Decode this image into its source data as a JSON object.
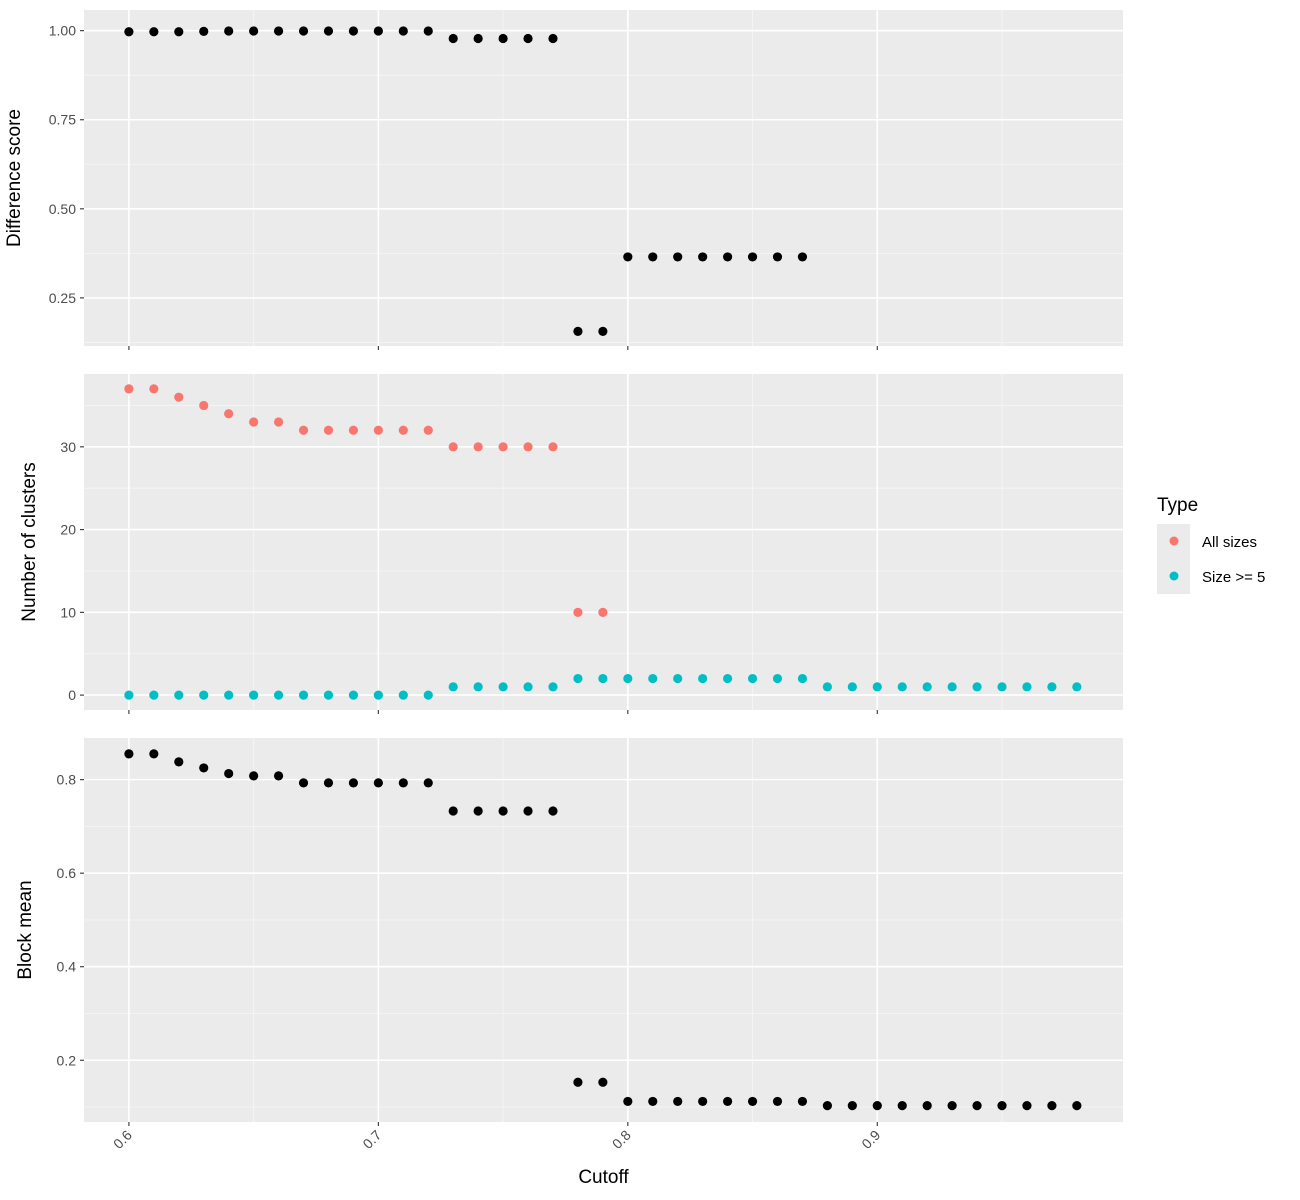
{
  "chart_data": {
    "type": "scatter",
    "xlabel": "Cutoff",
    "xlim": [
      0.582,
      0.9985
    ],
    "x_ticks": [
      0.6,
      0.7,
      0.8,
      0.9
    ],
    "x_tick_labels": [
      "0.6",
      "0.7",
      "0.8",
      "0.9"
    ],
    "panels": [
      {
        "id": "difference",
        "ylabel": "Difference score",
        "ylim": [
          0.115,
          1.058
        ],
        "y_ticks": [
          0.25,
          0.5,
          0.75,
          1.0
        ],
        "y_tick_labels": [
          "0.25",
          "0.50",
          "0.75",
          "1.00"
        ],
        "series": [
          {
            "color": "#000000",
            "x": [
              0.6,
              0.61,
              0.62,
              0.63,
              0.64,
              0.65,
              0.66,
              0.67,
              0.68,
              0.69,
              0.7,
              0.71,
              0.72,
              0.73,
              0.74,
              0.75,
              0.76,
              0.77,
              0.78,
              0.79,
              0.8,
              0.81,
              0.82,
              0.83,
              0.84,
              0.85,
              0.86,
              0.87
            ],
            "y": [
              0.997,
              0.997,
              0.997,
              0.998,
              0.999,
              0.999,
              0.999,
              0.999,
              0.999,
              0.999,
              0.999,
              0.999,
              0.999,
              0.978,
              0.978,
              0.978,
              0.978,
              0.978,
              0.156,
              0.156,
              0.365,
              0.365,
              0.365,
              0.365,
              0.365,
              0.365,
              0.365,
              0.365
            ]
          }
        ]
      },
      {
        "id": "clusters",
        "ylabel": "Number of clusters",
        "ylim": [
          -1.8,
          38.8
        ],
        "y_ticks": [
          0,
          10,
          20,
          30
        ],
        "y_tick_labels": [
          "0",
          "10",
          "20",
          "30"
        ],
        "series": [
          {
            "name": "All sizes",
            "color": "#F8766D",
            "x": [
              0.6,
              0.61,
              0.62,
              0.63,
              0.64,
              0.65,
              0.66,
              0.67,
              0.68,
              0.69,
              0.7,
              0.71,
              0.72,
              0.73,
              0.74,
              0.75,
              0.76,
              0.77,
              0.78,
              0.79
            ],
            "y": [
              37,
              37,
              36,
              35,
              34,
              33,
              33,
              32,
              32,
              32,
              32,
              32,
              32,
              30,
              30,
              30,
              30,
              30,
              10,
              10
            ]
          },
          {
            "name": "Size >= 5",
            "color": "#00BFC4",
            "x": [
              0.6,
              0.61,
              0.62,
              0.63,
              0.64,
              0.65,
              0.66,
              0.67,
              0.68,
              0.69,
              0.7,
              0.71,
              0.72,
              0.73,
              0.74,
              0.75,
              0.76,
              0.77,
              0.78,
              0.79,
              0.8,
              0.81,
              0.82,
              0.83,
              0.84,
              0.85,
              0.86,
              0.87,
              0.88,
              0.89,
              0.9,
              0.91,
              0.92,
              0.93,
              0.94,
              0.95,
              0.96,
              0.97,
              0.98
            ],
            "y": [
              0,
              0,
              0,
              0,
              0,
              0,
              0,
              0,
              0,
              0,
              0,
              0,
              0,
              1,
              1,
              1,
              1,
              1,
              2,
              2,
              2,
              2,
              2,
              2,
              2,
              2,
              2,
              2,
              1,
              1,
              1,
              1,
              1,
              1,
              1,
              1,
              1,
              1,
              1
            ]
          }
        ]
      },
      {
        "id": "blockmean",
        "ylabel": "Block mean",
        "ylim": [
          0.068,
          0.889
        ],
        "y_ticks": [
          0.2,
          0.4,
          0.6,
          0.8
        ],
        "y_tick_labels": [
          "0.2",
          "0.4",
          "0.6",
          "0.8"
        ],
        "series": [
          {
            "color": "#000000",
            "x": [
              0.6,
              0.61,
              0.62,
              0.63,
              0.64,
              0.65,
              0.66,
              0.67,
              0.68,
              0.69,
              0.7,
              0.71,
              0.72,
              0.73,
              0.74,
              0.75,
              0.76,
              0.77,
              0.78,
              0.79,
              0.8,
              0.81,
              0.82,
              0.83,
              0.84,
              0.85,
              0.86,
              0.87,
              0.88,
              0.89,
              0.9,
              0.91,
              0.92,
              0.93,
              0.94,
              0.95,
              0.96,
              0.97,
              0.98
            ],
            "y": [
              0.855,
              0.855,
              0.838,
              0.825,
              0.813,
              0.808,
              0.808,
              0.793,
              0.793,
              0.793,
              0.793,
              0.793,
              0.793,
              0.733,
              0.733,
              0.733,
              0.733,
              0.733,
              0.153,
              0.153,
              0.112,
              0.112,
              0.112,
              0.112,
              0.112,
              0.112,
              0.112,
              0.112,
              0.103,
              0.103,
              0.103,
              0.103,
              0.103,
              0.103,
              0.103,
              0.103,
              0.103,
              0.103,
              0.103
            ]
          }
        ]
      }
    ],
    "legend": {
      "title": "Type",
      "position": "right",
      "entries": [
        {
          "label": "All sizes",
          "color": "#F8766D"
        },
        {
          "label": "Size >= 5",
          "color": "#00BFC4"
        }
      ]
    },
    "grid": true
  }
}
